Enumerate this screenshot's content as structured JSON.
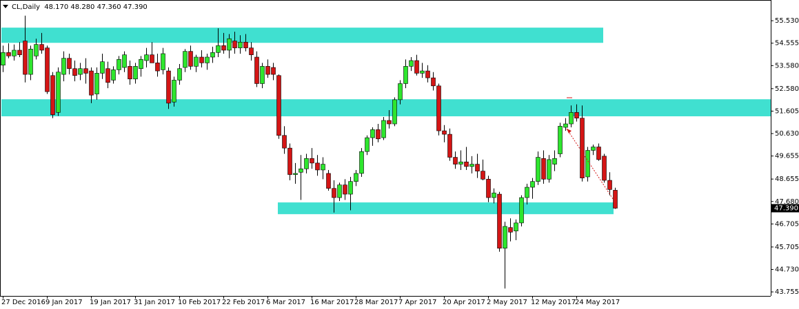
{
  "chart_data": {
    "type": "candlestick",
    "symbol": "CL,Daily",
    "ohlc_labels": [
      "48.170",
      "48.280",
      "47.360",
      "47.390"
    ],
    "categories": [
      "27 Dec 2016",
      null,
      null,
      null,
      null,
      null,
      null,
      null,
      "9 Jan 2017",
      null,
      null,
      null,
      null,
      null,
      null,
      null,
      "19 Jan 2017",
      null,
      null,
      null,
      null,
      null,
      null,
      null,
      "31 Jan 2017",
      null,
      null,
      null,
      null,
      null,
      null,
      null,
      "10 Feb 2017",
      null,
      null,
      null,
      null,
      null,
      null,
      null,
      "22 Feb 2017",
      null,
      null,
      null,
      null,
      null,
      null,
      null,
      "6 Mar 2017",
      null,
      null,
      null,
      null,
      null,
      null,
      null,
      "16 Mar 2017",
      null,
      null,
      null,
      null,
      null,
      null,
      null,
      "28 Mar 2017",
      null,
      null,
      null,
      null,
      null,
      null,
      null,
      "7 Apr 2017",
      null,
      null,
      null,
      null,
      null,
      null,
      null,
      "20 Apr 2017",
      null,
      null,
      null,
      null,
      null,
      null,
      null,
      "2 May 2017",
      null,
      null,
      null,
      null,
      null,
      null,
      null,
      "12 May 2017",
      null,
      null,
      null,
      null,
      null,
      null,
      null,
      "24 May 2017",
      null,
      null,
      null,
      null,
      null,
      null,
      null
    ],
    "open": [
      53.6,
      54.15,
      54.0,
      54.25,
      54.65,
      53.2,
      54.0,
      54.5,
      54.35,
      53.15,
      51.55,
      53.2,
      53.9,
      53.45,
      53.2,
      53.45,
      53.35,
      52.35,
      53.25,
      53.45,
      52.95,
      53.4,
      53.5,
      53.55,
      53.0,
      53.45,
      53.8,
      54.05,
      53.7,
      53.4,
      53.35,
      52.0,
      52.95,
      53.5,
      54.2,
      53.55,
      53.95,
      53.7,
      53.95,
      54.15,
      54.45,
      54.25,
      54.65,
      54.35,
      54.6,
      54.35,
      53.95,
      52.8,
      53.55,
      53.5,
      53.15,
      50.55,
      50.0,
      48.85,
      48.95,
      49.1,
      49.55,
      49.35,
      49.05,
      48.9,
      48.25,
      47.85,
      48.4,
      48.0,
      48.55,
      48.9,
      49.85,
      50.45,
      50.8,
      50.45,
      51.2,
      51.05,
      52.1,
      52.8,
      53.55,
      53.8,
      53.25,
      53.35,
      53.05,
      52.7,
      50.75,
      50.6,
      49.6,
      49.3,
      49.4,
      49.2,
      49.3,
      49.0,
      48.65,
      47.85,
      48.0,
      45.65,
      46.55,
      46.4,
      46.75,
      47.85,
      48.3,
      48.55,
      49.55,
      48.65,
      49.3,
      49.75,
      50.9,
      51.05,
      51.55,
      51.3,
      48.75,
      49.9,
      50.05,
      49.65,
      48.6,
      48.17
    ],
    "high": [
      54.45,
      54.55,
      54.5,
      54.6,
      55.75,
      54.45,
      54.75,
      55.0,
      54.45,
      53.3,
      53.5,
      54.2,
      54.1,
      53.8,
      53.7,
      53.9,
      53.5,
      53.5,
      54.1,
      53.75,
      53.55,
      54.0,
      54.2,
      53.8,
      53.7,
      54.0,
      54.35,
      54.6,
      54.1,
      54.35,
      53.5,
      53.1,
      53.65,
      54.3,
      54.45,
      54.05,
      54.25,
      54.1,
      54.4,
      55.2,
      55.0,
      54.95,
      55.05,
      54.9,
      54.95,
      54.6,
      54.2,
      53.7,
      53.85,
      53.7,
      53.2,
      50.95,
      50.2,
      49.35,
      49.7,
      49.75,
      50.0,
      49.7,
      49.6,
      49.05,
      48.6,
      48.5,
      48.65,
      48.75,
      49.05,
      50.0,
      50.55,
      50.9,
      51.05,
      51.35,
      51.65,
      52.2,
      52.95,
      53.85,
      53.95,
      54.05,
      53.7,
      53.6,
      53.3,
      52.8,
      51.0,
      50.85,
      49.85,
      49.9,
      50.05,
      49.65,
      49.75,
      49.5,
      48.8,
      48.25,
      48.1,
      46.8,
      46.95,
      46.9,
      47.95,
      48.45,
      48.7,
      49.85,
      49.9,
      49.7,
      49.9,
      51.1,
      51.3,
      51.85,
      51.9,
      51.85,
      50.05,
      50.15,
      50.2,
      49.75,
      48.95,
      48.28
    ],
    "low": [
      53.3,
      53.9,
      53.8,
      53.95,
      52.85,
      52.95,
      53.85,
      54.1,
      52.35,
      51.3,
      51.4,
      52.9,
      53.2,
      52.9,
      52.95,
      52.8,
      51.95,
      52.1,
      53.0,
      52.6,
      52.8,
      53.2,
      53.3,
      52.75,
      52.8,
      53.1,
      53.5,
      53.8,
      53.1,
      53.2,
      51.7,
      51.8,
      52.75,
      53.3,
      53.4,
      53.3,
      53.5,
      53.4,
      53.7,
      53.95,
      54.1,
      53.9,
      54.1,
      54.1,
      54.2,
      53.8,
      52.65,
      52.6,
      53.05,
      52.95,
      50.4,
      49.75,
      48.6,
      48.45,
      47.75,
      48.9,
      49.1,
      48.8,
      48.65,
      48.15,
      47.2,
      47.7,
      47.75,
      47.3,
      48.35,
      48.75,
      49.7,
      50.1,
      50.25,
      50.35,
      50.85,
      50.95,
      51.9,
      52.6,
      53.35,
      53.15,
      53.05,
      52.85,
      52.5,
      50.55,
      50.25,
      49.45,
      49.1,
      49.05,
      49.05,
      48.9,
      48.7,
      48.6,
      47.65,
      47.6,
      45.5,
      43.9,
      45.95,
      46.0,
      46.6,
      47.55,
      47.8,
      48.4,
      48.45,
      48.5,
      49.0,
      49.6,
      50.75,
      50.9,
      51.15,
      48.55,
      48.55,
      49.7,
      49.45,
      48.5,
      47.95,
      47.36
    ],
    "close": [
      54.15,
      54.0,
      54.25,
      54.05,
      53.2,
      54.3,
      54.5,
      54.25,
      52.45,
      51.45,
      53.3,
      53.9,
      53.45,
      53.15,
      53.45,
      53.25,
      52.3,
      53.25,
      53.75,
      52.85,
      53.4,
      53.85,
      54.05,
      53.0,
      53.55,
      53.85,
      54.05,
      53.7,
      53.35,
      54.1,
      51.95,
      52.95,
      53.45,
      54.2,
      53.55,
      53.95,
      53.7,
      53.95,
      54.15,
      54.45,
      54.25,
      54.75,
      54.35,
      54.6,
      54.35,
      54.05,
      52.8,
      53.55,
      53.2,
      53.2,
      50.55,
      50.0,
      48.85,
      48.9,
      49.1,
      49.55,
      49.35,
      49.05,
      49.3,
      48.25,
      47.85,
      48.4,
      48.0,
      48.55,
      48.9,
      49.85,
      50.45,
      50.8,
      50.4,
      51.2,
      51.05,
      52.1,
      52.8,
      53.55,
      53.8,
      53.25,
      53.35,
      53.05,
      52.7,
      50.75,
      50.6,
      49.6,
      49.3,
      49.4,
      49.2,
      49.3,
      49.0,
      48.65,
      47.85,
      48.05,
      45.65,
      46.6,
      46.35,
      46.75,
      47.85,
      48.3,
      48.55,
      49.6,
      48.65,
      49.5,
      49.55,
      50.95,
      51.05,
      51.55,
      51.3,
      48.7,
      49.9,
      50.05,
      49.5,
      48.6,
      48.2,
      47.39
    ],
    "up_color": "#2ee62e",
    "down_color": "#d41515",
    "zone_color": "#40e0d0",
    "zones": [
      {
        "ymin": 54.57,
        "ymax": 55.23
      },
      {
        "ymin": 51.38,
        "ymax": 52.12
      },
      {
        "ymin": 47.13,
        "ymax": 47.64
      }
    ],
    "ylim": [
      43.58,
      56.43
    ],
    "yticks": [
      {
        "value": 55.53,
        "label": "55.530"
      },
      {
        "value": 54.555,
        "label": "54.555"
      },
      {
        "value": 53.58,
        "label": "53.580"
      },
      {
        "value": 52.58,
        "label": "52.580"
      },
      {
        "value": 51.605,
        "label": "51.605"
      },
      {
        "value": 50.63,
        "label": "50.630"
      },
      {
        "value": 49.655,
        "label": "49.655"
      },
      {
        "value": 48.655,
        "label": "48.655"
      },
      {
        "value": 47.68,
        "label": "47.680"
      },
      {
        "value": 46.705,
        "label": "46.705"
      },
      {
        "value": 45.705,
        "label": "45.705"
      },
      {
        "value": 44.73,
        "label": "44.730"
      },
      {
        "value": 43.755,
        "label": "43.755"
      }
    ]
  }
}
